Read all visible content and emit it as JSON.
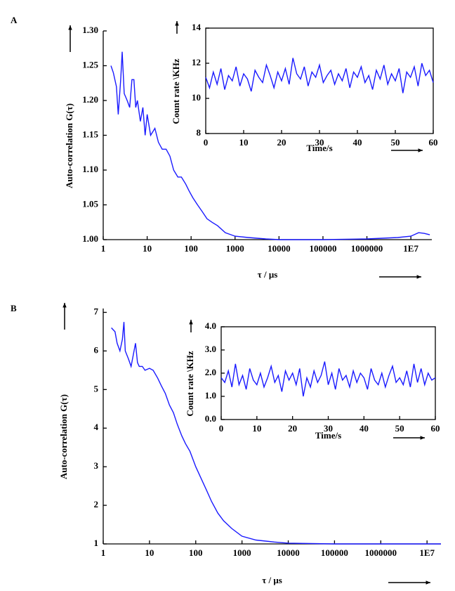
{
  "chart_data": [
    {
      "type": "line",
      "panel": "A",
      "xscale": "log",
      "xlabel": "τ / μs",
      "ylabel": "Auto-correlation G(τ)",
      "color": "#1a1aff",
      "x": [
        1.5,
        1.7,
        2,
        2.2,
        2.5,
        2.7,
        3,
        3.5,
        4,
        4.5,
        5,
        5.5,
        6,
        7,
        8,
        9,
        10,
        12,
        15,
        18,
        22,
        27,
        33,
        40,
        50,
        60,
        75,
        90,
        110,
        140,
        180,
        230,
        300,
        400,
        600,
        1000,
        2000,
        5000,
        10000,
        100000,
        1000000,
        5000000,
        10000000,
        15000000,
        20000000,
        27000000
      ],
      "values": [
        1.25,
        1.24,
        1.22,
        1.18,
        1.23,
        1.27,
        1.21,
        1.2,
        1.19,
        1.23,
        1.23,
        1.19,
        1.2,
        1.17,
        1.19,
        1.15,
        1.18,
        1.15,
        1.16,
        1.14,
        1.13,
        1.13,
        1.12,
        1.1,
        1.09,
        1.09,
        1.08,
        1.07,
        1.06,
        1.05,
        1.04,
        1.03,
        1.025,
        1.02,
        1.01,
        1.005,
        1.003,
        1.001,
        1.0,
        1.0,
        1.001,
        1.003,
        1.005,
        1.01,
        1.009,
        1.007
      ],
      "xlim": [
        1,
        30000000
      ],
      "xticks": [
        1,
        10,
        100,
        1000,
        10000,
        100000,
        1000000,
        {
          "value": 10000000,
          "label": "1E7"
        }
      ],
      "ylim": [
        1.0,
        1.3
      ],
      "yticks": [
        {
          "value": 1.0,
          "label": "1.00"
        },
        {
          "value": 1.05,
          "label": "1.05"
        },
        {
          "value": 1.1,
          "label": "1.10"
        },
        {
          "value": 1.15,
          "label": "1.15"
        },
        {
          "value": 1.2,
          "label": "1.20"
        },
        {
          "value": 1.25,
          "label": "1.25"
        },
        {
          "value": 1.3,
          "label": "1.30"
        }
      ]
    },
    {
      "type": "line",
      "xlabel": "Time/s",
      "ylabel": "Count rate \\KHz",
      "color": "#1a1aff",
      "x": [
        0,
        1,
        2,
        3,
        4,
        5,
        6,
        7,
        8,
        9,
        10,
        11,
        12,
        13,
        14,
        15,
        16,
        17,
        18,
        19,
        20,
        21,
        22,
        23,
        24,
        25,
        26,
        27,
        28,
        29,
        30,
        31,
        32,
        33,
        34,
        35,
        36,
        37,
        38,
        39,
        40,
        41,
        42,
        43,
        44,
        45,
        46,
        47,
        48,
        49,
        50,
        51,
        52,
        53,
        54,
        55,
        56,
        57,
        58,
        59,
        60
      ],
      "values": [
        11.2,
        10.6,
        11.5,
        10.8,
        11.7,
        10.5,
        11.3,
        11.0,
        11.8,
        10.7,
        11.4,
        11.1,
        10.4,
        11.6,
        11.2,
        10.9,
        11.9,
        11.3,
        10.6,
        11.5,
        11.0,
        11.7,
        10.8,
        12.3,
        11.4,
        11.1,
        11.8,
        10.7,
        11.5,
        11.2,
        11.9,
        10.9,
        11.3,
        11.6,
        10.8,
        11.4,
        11.0,
        11.7,
        10.6,
        11.5,
        11.2,
        11.8,
        10.9,
        11.3,
        10.5,
        11.6,
        11.1,
        11.9,
        10.8,
        11.4,
        11.0,
        11.7,
        10.3,
        11.5,
        11.2,
        11.8,
        10.7,
        12.0,
        11.3,
        11.6,
        10.9
      ],
      "xlim": [
        0,
        60
      ],
      "xticks": [
        0,
        10,
        20,
        30,
        40,
        50,
        60
      ],
      "ylim": [
        8,
        14
      ],
      "yticks": [
        8,
        10,
        12,
        14
      ]
    },
    {
      "type": "line",
      "panel": "B",
      "xscale": "log",
      "xlabel": "τ / μs",
      "ylabel": "Auto-correlation G(τ)",
      "color": "#1a1aff",
      "x": [
        1.5,
        1.8,
        2,
        2.3,
        2.6,
        2.8,
        3,
        3.5,
        4,
        5,
        5.5,
        6,
        7,
        8,
        10,
        12,
        15,
        18,
        22,
        27,
        33,
        40,
        50,
        60,
        75,
        100,
        130,
        170,
        220,
        300,
        400,
        600,
        1000,
        2000,
        5000,
        10000,
        100000,
        1000000,
        10000000,
        20000000
      ],
      "values": [
        6.6,
        6.5,
        6.2,
        6.0,
        6.3,
        6.75,
        6.0,
        5.8,
        5.6,
        6.2,
        5.7,
        5.6,
        5.6,
        5.5,
        5.55,
        5.5,
        5.3,
        5.1,
        4.9,
        4.6,
        4.4,
        4.1,
        3.8,
        3.6,
        3.4,
        3.0,
        2.7,
        2.4,
        2.1,
        1.8,
        1.6,
        1.4,
        1.2,
        1.1,
        1.05,
        1.02,
        1.0,
        1.0,
        1.0,
        1.0
      ],
      "xlim": [
        1,
        20000000
      ],
      "xticks": [
        1,
        10,
        100,
        1000,
        10000,
        100000,
        1000000,
        {
          "value": 10000000,
          "label": "1E7"
        }
      ],
      "ylim": [
        1,
        7.1
      ],
      "yticks": [
        1,
        2,
        3,
        4,
        5,
        6,
        7
      ]
    },
    {
      "type": "line",
      "xlabel": "Time/s",
      "ylabel": "Count rate \\KHz",
      "color": "#1a1aff",
      "x": [
        0,
        1,
        2,
        3,
        4,
        5,
        6,
        7,
        8,
        9,
        10,
        11,
        12,
        13,
        14,
        15,
        16,
        17,
        18,
        19,
        20,
        21,
        22,
        23,
        24,
        25,
        26,
        27,
        28,
        29,
        30,
        31,
        32,
        33,
        34,
        35,
        36,
        37,
        38,
        39,
        40,
        41,
        42,
        43,
        44,
        45,
        46,
        47,
        48,
        49,
        50,
        51,
        52,
        53,
        54,
        55,
        56,
        57,
        58,
        59,
        60
      ],
      "values": [
        1.8,
        1.6,
        2.1,
        1.4,
        2.4,
        1.5,
        1.9,
        1.3,
        2.2,
        1.7,
        1.5,
        2.0,
        1.4,
        1.8,
        2.3,
        1.6,
        1.9,
        1.2,
        2.1,
        1.7,
        2.0,
        1.5,
        2.2,
        1.0,
        1.8,
        1.4,
        2.1,
        1.6,
        1.9,
        2.5,
        1.5,
        2.0,
        1.3,
        2.2,
        1.7,
        1.9,
        1.4,
        2.1,
        1.6,
        2.0,
        1.8,
        1.3,
        2.2,
        1.7,
        1.5,
        2.0,
        1.4,
        1.9,
        2.3,
        1.6,
        1.8,
        1.5,
        2.1,
        1.4,
        2.4,
        1.6,
        2.2,
        1.5,
        2.0,
        1.7,
        1.8
      ],
      "xlim": [
        0,
        60
      ],
      "xticks": [
        0,
        10,
        20,
        30,
        40,
        50,
        60
      ],
      "ylim": [
        0,
        4
      ],
      "yticks": [
        {
          "value": 0,
          "label": "0.0"
        },
        {
          "value": 1,
          "label": "1.0"
        },
        {
          "value": 2,
          "label": "2.0"
        },
        {
          "value": 3,
          "label": "3.0"
        },
        {
          "value": 4,
          "label": "4.0"
        }
      ]
    }
  ]
}
